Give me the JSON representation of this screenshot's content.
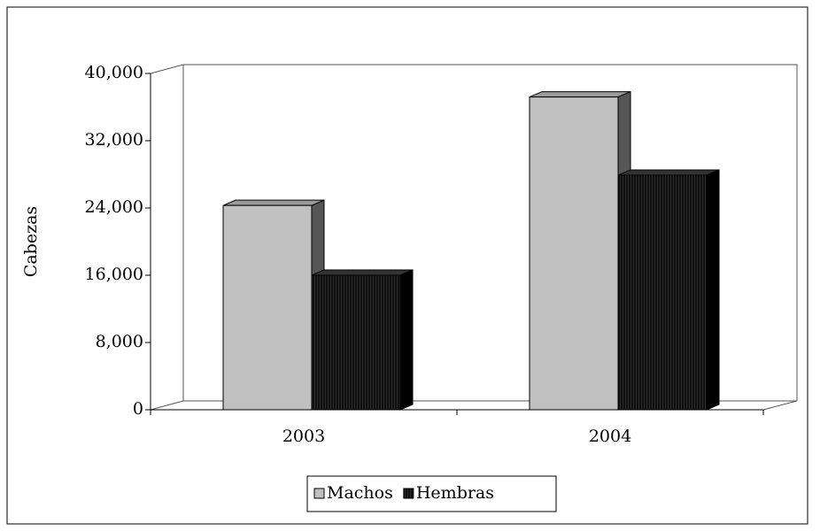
{
  "chart_data": {
    "type": "bar3d",
    "y_axis_label": "Cabezas",
    "categories": [
      "2003",
      "2004"
    ],
    "series": [
      {
        "name": "Machos",
        "color": "#c0c0c0",
        "values": [
          24300,
          37200
        ]
      },
      {
        "name": "Hembras",
        "color": "#111111",
        "values": [
          16000,
          27900
        ]
      }
    ],
    "ylim": [
      0,
      40000
    ],
    "yticks": [
      0,
      {
        "value": 8000,
        "label": "8,000"
      },
      {
        "value": 16000,
        "label": "16,000"
      },
      {
        "value": 24000,
        "label": "24,000"
      },
      {
        "value": 32000,
        "label": "32,000"
      },
      {
        "value": 40000,
        "label": "40,000"
      }
    ],
    "legend": "bottom"
  }
}
